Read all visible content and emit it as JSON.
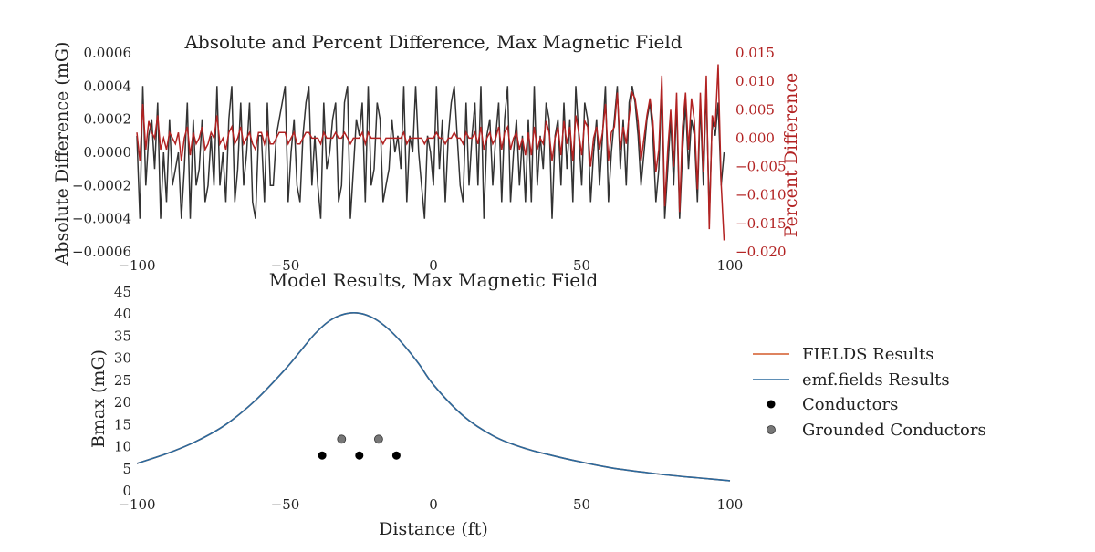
{
  "chart_data": [
    {
      "type": "line",
      "title": "Absolute and Percent Difference, Max Magnetic Field",
      "xlim": [
        -100,
        100
      ],
      "x_ticks": [
        "−100",
        "−50",
        "0",
        "50",
        "100"
      ],
      "left_axis": {
        "ylabel": "Absolute Difference (mG)",
        "ylim": [
          -0.0006,
          0.0006
        ],
        "ticks": [
          "0.0006",
          "0.0004",
          "0.0002",
          "0.0000",
          "−0.0002",
          "−0.0004",
          "−0.0006"
        ]
      },
      "right_axis": {
        "ylabel": "Percent Difference",
        "ylim": [
          -0.02,
          0.015
        ],
        "ticks": [
          "0.015",
          "0.010",
          "0.005",
          "0.000",
          "−0.005",
          "−0.010",
          "−0.015",
          "−0.020"
        ]
      },
      "grid": false,
      "series": [
        {
          "axis": "left",
          "color": "#333333",
          "x_start": -100,
          "x_step": 1,
          "values": [
            0.0001,
            -0.0004,
            0.0004,
            -0.0002,
            0.0001,
            0.0002,
            -0.0001,
            0.0003,
            -0.0004,
            0.0,
            -0.0003,
            0.0002,
            -0.0002,
            -0.0001,
            0.0,
            -0.0004,
            -0.0001,
            0.0003,
            -0.0004,
            0.0002,
            -0.0002,
            -0.0001,
            0.0002,
            -0.0003,
            -0.0002,
            0.0001,
            -0.0002,
            0.0004,
            -0.0002,
            0.0,
            -0.0003,
            0.0002,
            0.0004,
            -0.0003,
            -0.0001,
            0.0003,
            -0.0002,
            0.0,
            0.0003,
            -0.0003,
            -0.0004,
            0.0001,
            0.0001,
            -0.0003,
            0.0003,
            -0.0002,
            -0.0002,
            0.0001,
            0.0002,
            0.0003,
            0.0004,
            -0.0003,
            0.0,
            0.0002,
            -0.0002,
            -0.0003,
            0.0001,
            0.0003,
            0.0004,
            -0.0002,
            0.0001,
            -0.0002,
            -0.0004,
            0.0003,
            -0.0001,
            0.0,
            0.0002,
            0.0003,
            -0.0003,
            -0.0002,
            0.0003,
            0.0004,
            -0.0004,
            -0.0001,
            0.0002,
            0.0001,
            0.0003,
            -0.0003,
            0.0004,
            -0.0002,
            -0.0001,
            0.0003,
            0.0002,
            -0.0003,
            -0.0002,
            -0.0001,
            0.0002,
            0.0,
            0.0001,
            -0.0001,
            0.0004,
            -0.0003,
            0.0001,
            0.0,
            0.0004,
            0.0,
            -0.0002,
            -0.0004,
            0.0001,
            0.0,
            -0.0002,
            0.0004,
            -0.0001,
            0.0002,
            -0.0003,
            0.0001,
            0.0003,
            0.0004,
            0.0001,
            -0.0002,
            -0.0003,
            0.0003,
            -0.0002,
            0.0001,
            0.0003,
            -0.0002,
            0.0004,
            -0.0004,
            0.0001,
            0.0002,
            -0.0002,
            0.0001,
            0.0003,
            -0.0003,
            0.0002,
            0.0004,
            -0.0003,
            0.0,
            0.0002,
            -0.0002,
            0.0001,
            -0.0003,
            0.0002,
            -0.0003,
            0.0004,
            -0.0002,
            0.0001,
            -0.0001,
            0.0003,
            0.0002,
            -0.0004,
            0.0001,
            0.0002,
            -0.0002,
            0.0003,
            -0.0001,
            0.0002,
            -0.0003,
            0.0004,
            0.0001,
            -0.0002,
            0.0003,
            0.0002,
            -0.0003,
            0.0,
            0.0002,
            -0.0002,
            0.0001,
            0.0004,
            -0.0003,
            0.0,
            0.0002,
            0.0004,
            -0.0001,
            0.0002,
            -0.0002,
            0.0003,
            0.0004,
            0.0003,
            0.0001,
            -0.0002,
            0.0,
            0.0002,
            0.0003,
            0.0001,
            -0.0003,
            -0.0001,
            0.0004,
            -0.0004,
            -0.0001,
            0.0002,
            -0.0002,
            0.0003,
            -0.0004,
            0.0,
            0.0003,
            -0.0001,
            0.0002,
            0.0001,
            -0.0003,
            0.0003,
            -0.0002,
            0.0004,
            -0.0004,
            0.0002,
            0.0001,
            0.0003,
            -0.0002,
            0.0
          ]
        },
        {
          "axis": "right",
          "color": "#b22222",
          "x_start": -100,
          "x_step": 1,
          "values": [
            0.001,
            -0.004,
            0.006,
            -0.002,
            0.003,
            0.001,
            0.0,
            0.004,
            -0.002,
            0.0,
            -0.002,
            0.001,
            0.0,
            -0.001,
            0.001,
            -0.004,
            0.0,
            0.002,
            -0.003,
            0.001,
            -0.001,
            0.0,
            0.002,
            -0.002,
            -0.001,
            0.001,
            0.0,
            0.004,
            -0.001,
            0.0,
            -0.002,
            0.001,
            0.002,
            -0.001,
            0.0,
            0.002,
            -0.001,
            0.0,
            0.001,
            -0.001,
            -0.002,
            0.001,
            0.001,
            -0.001,
            0.001,
            -0.001,
            -0.001,
            0.0,
            0.001,
            0.001,
            0.001,
            -0.001,
            0.0,
            0.001,
            -0.001,
            -0.001,
            0.0,
            0.001,
            0.001,
            0.0,
            0.0,
            0.0,
            -0.001,
            0.001,
            0.0,
            0.0,
            0.0,
            0.001,
            0.0,
            0.0,
            0.001,
            0.0,
            -0.001,
            0.0,
            0.0,
            0.0,
            0.001,
            -0.001,
            0.001,
            0.0,
            0.0,
            0.0,
            0.0,
            -0.001,
            0.0,
            0.0,
            0.0,
            0.0,
            0.0,
            0.0,
            0.001,
            -0.001,
            0.0,
            0.0,
            0.0,
            0.0,
            0.0,
            -0.001,
            0.0,
            0.0,
            0.0,
            0.001,
            0.0,
            0.0,
            -0.001,
            0.0,
            0.0,
            0.001,
            0.0,
            0.0,
            -0.001,
            0.001,
            0.0,
            0.0,
            0.001,
            -0.001,
            0.002,
            -0.002,
            0.0,
            0.001,
            -0.001,
            0.0,
            0.002,
            -0.002,
            0.001,
            0.002,
            -0.002,
            0.0,
            0.001,
            -0.002,
            0.0,
            -0.003,
            0.001,
            -0.003,
            0.002,
            -0.002,
            0.0,
            -0.001,
            0.003,
            0.001,
            -0.004,
            0.0,
            0.002,
            -0.003,
            0.003,
            -0.001,
            0.002,
            -0.004,
            0.004,
            0.001,
            -0.003,
            0.003,
            0.002,
            -0.005,
            0.0,
            0.002,
            -0.002,
            0.001,
            0.006,
            -0.004,
            0.001,
            0.002,
            0.008,
            -0.002,
            0.002,
            -0.001,
            0.004,
            0.008,
            0.007,
            0.003,
            -0.004,
            0.0,
            0.004,
            0.007,
            0.003,
            -0.006,
            -0.002,
            0.011,
            -0.012,
            -0.002,
            0.005,
            -0.005,
            0.008,
            -0.013,
            0.002,
            0.008,
            -0.002,
            0.007,
            0.003,
            -0.009,
            0.008,
            -0.006,
            0.011,
            -0.016,
            0.004,
            0.002,
            0.013,
            -0.008,
            -0.018
          ]
        }
      ]
    },
    {
      "type": "line",
      "title": "Model Results, Max Magnetic Field",
      "xlabel": "Distance (ft)",
      "ylabel": "Bmax (mG)",
      "xlim": [
        -100,
        100
      ],
      "ylim": [
        0,
        45
      ],
      "x_ticks": [
        "−100",
        "−50",
        "0",
        "50",
        "100"
      ],
      "y_ticks": [
        "45",
        "40",
        "35",
        "30",
        "25",
        "20",
        "15",
        "10",
        "5",
        "0"
      ],
      "grid": false,
      "legend_position": "right",
      "series": [
        {
          "name": "FIELDS Results",
          "color": "#d45a2a",
          "x": [
            -100,
            -90,
            -80,
            -70,
            -60,
            -50,
            -45,
            -40,
            -35,
            -30,
            -25,
            -20,
            -15,
            -10,
            -5,
            0,
            10,
            20,
            30,
            40,
            50,
            60,
            70,
            80,
            90,
            100
          ],
          "values": [
            6.2,
            8.4,
            11.2,
            15.0,
            20.5,
            27.5,
            31.5,
            35.5,
            38.5,
            40.0,
            40.2,
            39.0,
            36.5,
            33.0,
            28.8,
            24.0,
            17.0,
            12.5,
            9.8,
            8.0,
            6.5,
            5.2,
            4.3,
            3.5,
            2.9,
            2.3
          ]
        },
        {
          "name": "emf.fields Results",
          "color": "#2a6a9e",
          "x": [
            -100,
            -90,
            -80,
            -70,
            -60,
            -50,
            -45,
            -40,
            -35,
            -30,
            -25,
            -20,
            -15,
            -10,
            -5,
            0,
            10,
            20,
            30,
            40,
            50,
            60,
            70,
            80,
            90,
            100
          ],
          "values": [
            6.2,
            8.4,
            11.2,
            15.0,
            20.5,
            27.5,
            31.5,
            35.5,
            38.5,
            40.0,
            40.2,
            39.0,
            36.5,
            33.0,
            28.8,
            24.0,
            17.0,
            12.5,
            9.8,
            8.0,
            6.5,
            5.2,
            4.3,
            3.5,
            2.9,
            2.3
          ]
        },
        {
          "name": "Conductors",
          "type": "scatter",
          "color": "#000000",
          "x": [
            -37.5,
            -25,
            -12.5
          ],
          "values": [
            8,
            8,
            8
          ]
        },
        {
          "name": "Grounded Conductors",
          "type": "scatter",
          "color": "#777777",
          "x": [
            -31,
            -18.5
          ],
          "values": [
            11.7,
            11.7
          ]
        }
      ]
    }
  ]
}
